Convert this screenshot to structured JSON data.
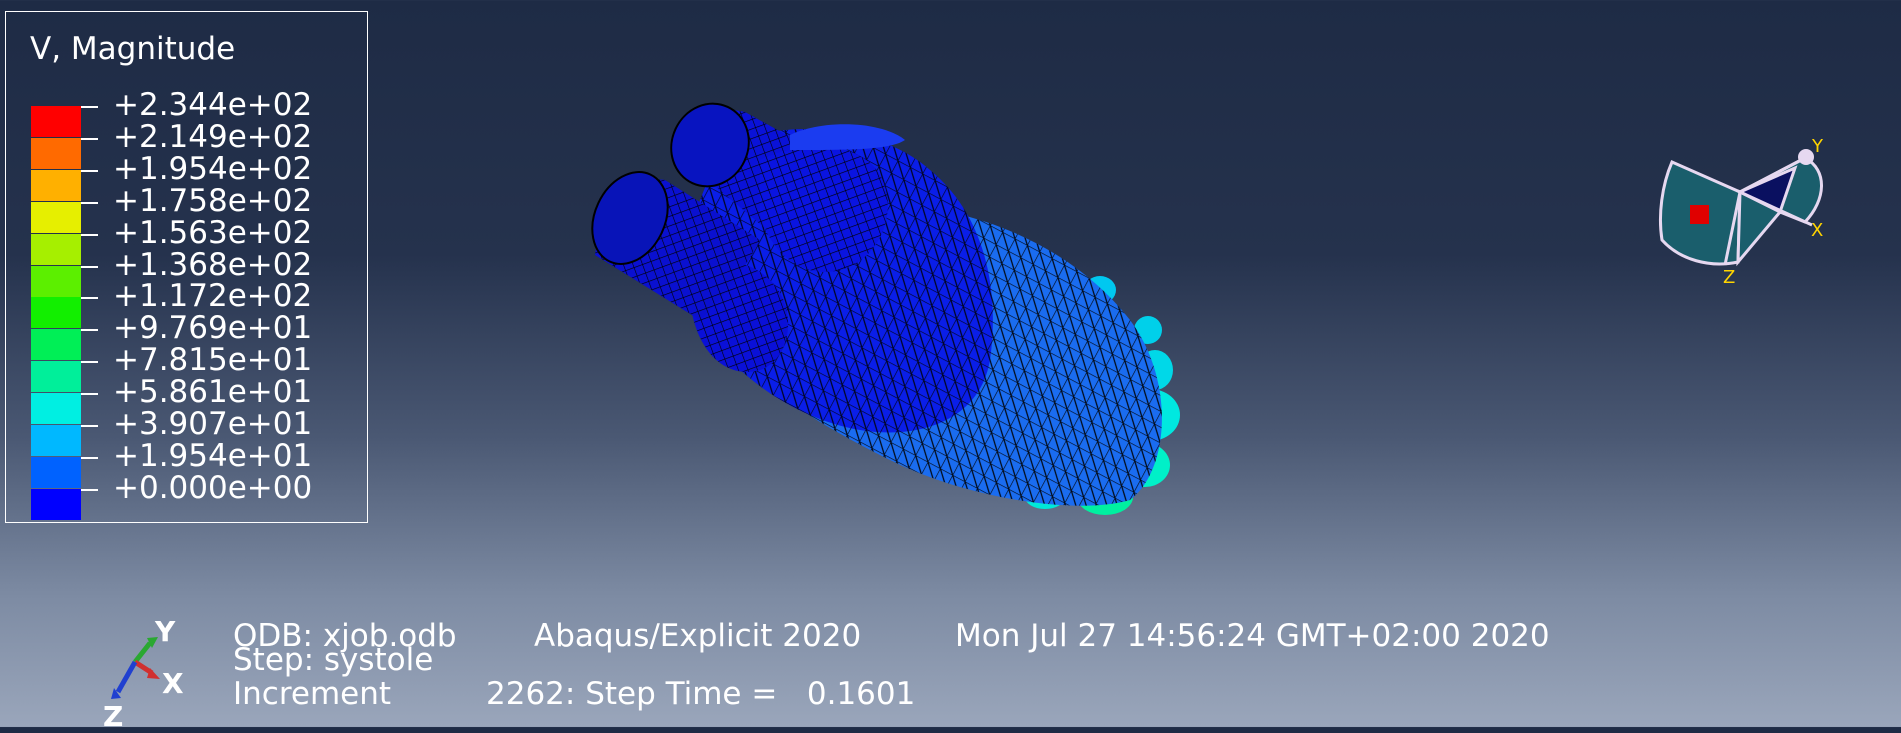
{
  "legend": {
    "title": "V, Magnitude",
    "labels": [
      "+2.344e+02",
      "+2.149e+02",
      "+1.954e+02",
      "+1.758e+02",
      "+1.563e+02",
      "+1.368e+02",
      "+1.172e+02",
      "+9.769e+01",
      "+7.815e+01",
      "+5.861e+01",
      "+3.907e+01",
      "+1.954e+01",
      "+0.000e+00"
    ],
    "colors": [
      "#ff0000",
      "#ff6a00",
      "#ffb000",
      "#e6ef00",
      "#a6ef00",
      "#5cef00",
      "#12ef00",
      "#00ef56",
      "#00ef9a",
      "#00efe2",
      "#00b8ff",
      "#0062ff",
      "#0000ff"
    ]
  },
  "info": {
    "odb": "ODB: xjob.odb",
    "solver": "Abaqus/Explicit 2020",
    "date": "Mon Jul 27 14:56:24 GMT+02:00 2020",
    "step": "Step: systole",
    "increment_label": "Increment",
    "increment_value": "2262: Step Time =   0.1601"
  },
  "triad": {
    "y": "Y",
    "x": "X",
    "z": "Z"
  },
  "view_cube": {
    "y": "Y",
    "x": "X",
    "z": "Z"
  }
}
